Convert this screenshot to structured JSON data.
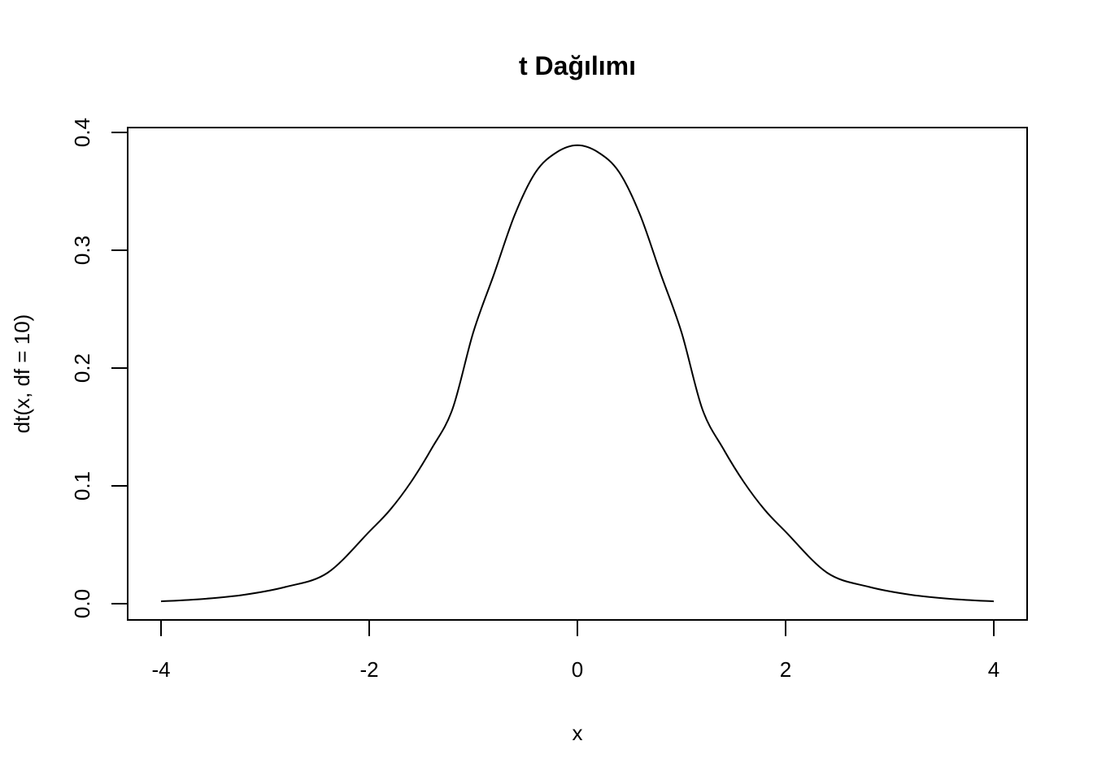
{
  "chart_data": {
    "type": "line",
    "title": "t Dağılımı",
    "xlabel": "x",
    "ylabel": "dt(x, df = 10)",
    "xlim": [
      -4,
      4
    ],
    "ylim": [
      0,
      0.4
    ],
    "x_ticks": [
      -4,
      -2,
      0,
      2,
      4
    ],
    "x_tick_labels": [
      "-4",
      "-2",
      "0",
      "2",
      "4"
    ],
    "y_ticks": [
      0.0,
      0.1,
      0.2,
      0.3,
      0.4
    ],
    "y_tick_labels": [
      "0.0",
      "0.1",
      "0.2",
      "0.3",
      "0.4"
    ],
    "grid": false,
    "line_color": "#000000",
    "series": [
      {
        "x": [
          -4.0,
          -3.6,
          -3.2,
          -2.8,
          -2.4,
          -2.0,
          -1.8,
          -1.6,
          -1.4,
          -1.2,
          -1.0,
          -0.8,
          -0.6,
          -0.4,
          -0.2,
          0.0,
          0.2,
          0.4,
          0.6,
          0.8,
          1.0,
          1.2,
          1.4,
          1.6,
          1.8,
          2.0,
          2.4,
          2.8,
          3.2,
          3.6,
          4.0
        ],
        "y": [
          0.002,
          0.004,
          0.0076,
          0.0143,
          0.0262,
          0.0611,
          0.0796,
          0.1031,
          0.1317,
          0.1652,
          0.2304,
          0.28,
          0.3305,
          0.3664,
          0.3831,
          0.3891,
          0.3831,
          0.3664,
          0.3305,
          0.28,
          0.2304,
          0.1652,
          0.1317,
          0.1031,
          0.0796,
          0.0611,
          0.0262,
          0.0143,
          0.0076,
          0.004,
          0.002
        ]
      }
    ]
  }
}
